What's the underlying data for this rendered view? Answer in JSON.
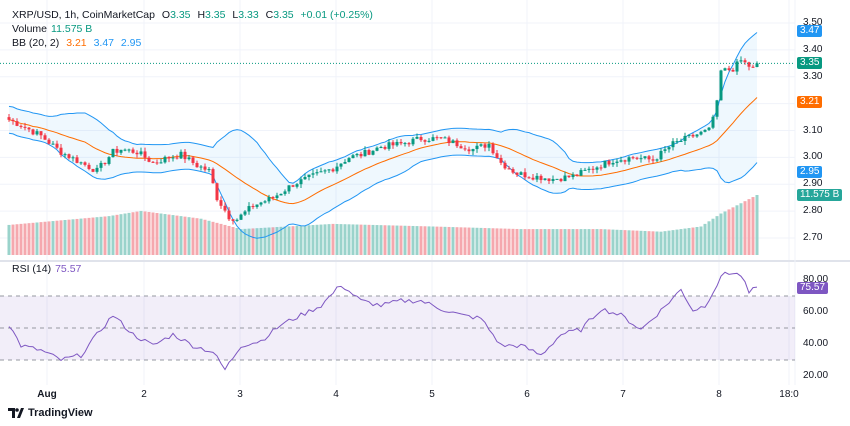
{
  "legend": {
    "symbol": "XRP/USD, 1h, CoinMarketCap",
    "o_label": "O",
    "o": "3.35",
    "h_label": "H",
    "h": "3.35",
    "l_label": "L",
    "l": "3.33",
    "c_label": "C",
    "c": "3.35",
    "change": "+0.01 (+0.25%)",
    "volume_label": "Volume",
    "volume": "11.575 B",
    "bb_label": "BB (20, 2)",
    "bb_basis": "3.21",
    "bb_upper": "3.47",
    "bb_lower": "2.95",
    "rsi_label": "RSI (14)",
    "rsi": "75.57"
  },
  "price_axis": [
    "3.50",
    "3.40",
    "3.30",
    "3.10",
    "3.00",
    "2.90",
    "2.80",
    "2.70"
  ],
  "price_tags": {
    "upper": "3.47",
    "last": "3.35",
    "basis": "3.21",
    "lower": "2.95",
    "volume": "11.575 B"
  },
  "rsi_axis": [
    "80.00",
    "60.00",
    "40.00",
    "20.00"
  ],
  "rsi_tag": "75.57",
  "time_axis": [
    "Aug",
    "2",
    "3",
    "4",
    "5",
    "6",
    "7",
    "8",
    "18:0"
  ],
  "brand": "TradingView",
  "colors": {
    "up": "#089981",
    "down": "#f23645",
    "basis": "#ff6d00",
    "band": "#2196f3",
    "rsi": "#7e57c2"
  },
  "chart_data": {
    "type": "candlestick",
    "interval": "1h",
    "price_range": [
      2.65,
      3.52
    ],
    "close_keypoints": [
      [
        0,
        3.14
      ],
      [
        3,
        3.12
      ],
      [
        8,
        3.08
      ],
      [
        13,
        3.02
      ],
      [
        18,
        2.98
      ],
      [
        22,
        2.95
      ],
      [
        26,
        3.02
      ],
      [
        28,
        3.03
      ],
      [
        32,
        3.02
      ],
      [
        36,
        2.98
      ],
      [
        40,
        3.0
      ],
      [
        43,
        3.01
      ],
      [
        47,
        2.97
      ],
      [
        50,
        2.95
      ],
      [
        52,
        2.85
      ],
      [
        55,
        2.78
      ],
      [
        57,
        2.77
      ],
      [
        61,
        2.82
      ],
      [
        66,
        2.85
      ],
      [
        71,
        2.9
      ],
      [
        76,
        2.93
      ],
      [
        81,
        2.96
      ],
      [
        85,
        3.0
      ],
      [
        88,
        3.01
      ],
      [
        93,
        3.04
      ],
      [
        98,
        3.05
      ],
      [
        103,
        3.07
      ],
      [
        108,
        3.07
      ],
      [
        112,
        3.05
      ],
      [
        116,
        3.03
      ],
      [
        120,
        3.05
      ],
      [
        123,
        2.98
      ],
      [
        127,
        2.94
      ],
      [
        131,
        2.93
      ],
      [
        136,
        2.92
      ],
      [
        141,
        2.93
      ],
      [
        146,
        2.96
      ],
      [
        151,
        2.99
      ],
      [
        156,
        3.0
      ],
      [
        161,
        2.99
      ],
      [
        166,
        3.05
      ],
      [
        171,
        3.08
      ],
      [
        175,
        3.1
      ],
      [
        177,
        3.2
      ],
      [
        178,
        3.32
      ],
      [
        181,
        3.33
      ],
      [
        183,
        3.36
      ],
      [
        186,
        3.33
      ],
      [
        187,
        3.35
      ]
    ],
    "volume_keypoints_billions": [
      [
        0,
        5.8
      ],
      [
        25,
        7.5
      ],
      [
        33,
        8.5
      ],
      [
        48,
        7.0
      ],
      [
        58,
        5.0
      ],
      [
        81,
        6.0
      ],
      [
        106,
        5.5
      ],
      [
        128,
        5.0
      ],
      [
        148,
        5.0
      ],
      [
        163,
        4.5
      ],
      [
        173,
        5.5
      ],
      [
        178,
        8.0
      ],
      [
        187,
        11.575
      ]
    ],
    "rsi_keypoints": [
      [
        0,
        52
      ],
      [
        3,
        39
      ],
      [
        8,
        36
      ],
      [
        13,
        30
      ],
      [
        18,
        33
      ],
      [
        23,
        49
      ],
      [
        26,
        58
      ],
      [
        31,
        46
      ],
      [
        36,
        39
      ],
      [
        41,
        46
      ],
      [
        46,
        39
      ],
      [
        51,
        35
      ],
      [
        54,
        24
      ],
      [
        58,
        39
      ],
      [
        63,
        42
      ],
      [
        68,
        52
      ],
      [
        73,
        58
      ],
      [
        78,
        64
      ],
      [
        83,
        77
      ],
      [
        88,
        67
      ],
      [
        93,
        64
      ],
      [
        98,
        67
      ],
      [
        103,
        67
      ],
      [
        108,
        62
      ],
      [
        113,
        58
      ],
      [
        118,
        56
      ],
      [
        123,
        39
      ],
      [
        128,
        39
      ],
      [
        133,
        33
      ],
      [
        138,
        46
      ],
      [
        143,
        49
      ],
      [
        148,
        62
      ],
      [
        153,
        58
      ],
      [
        158,
        49
      ],
      [
        163,
        61
      ],
      [
        168,
        74
      ],
      [
        171,
        61
      ],
      [
        174,
        64
      ],
      [
        177,
        77
      ],
      [
        179,
        85
      ],
      [
        183,
        83
      ],
      [
        185,
        72
      ],
      [
        187,
        75.57
      ]
    ],
    "rsi_levels": [
      70,
      50,
      30
    ],
    "rsi_range": [
      15,
      88
    ],
    "bollinger": {
      "period": 20,
      "stddev": 2
    }
  }
}
